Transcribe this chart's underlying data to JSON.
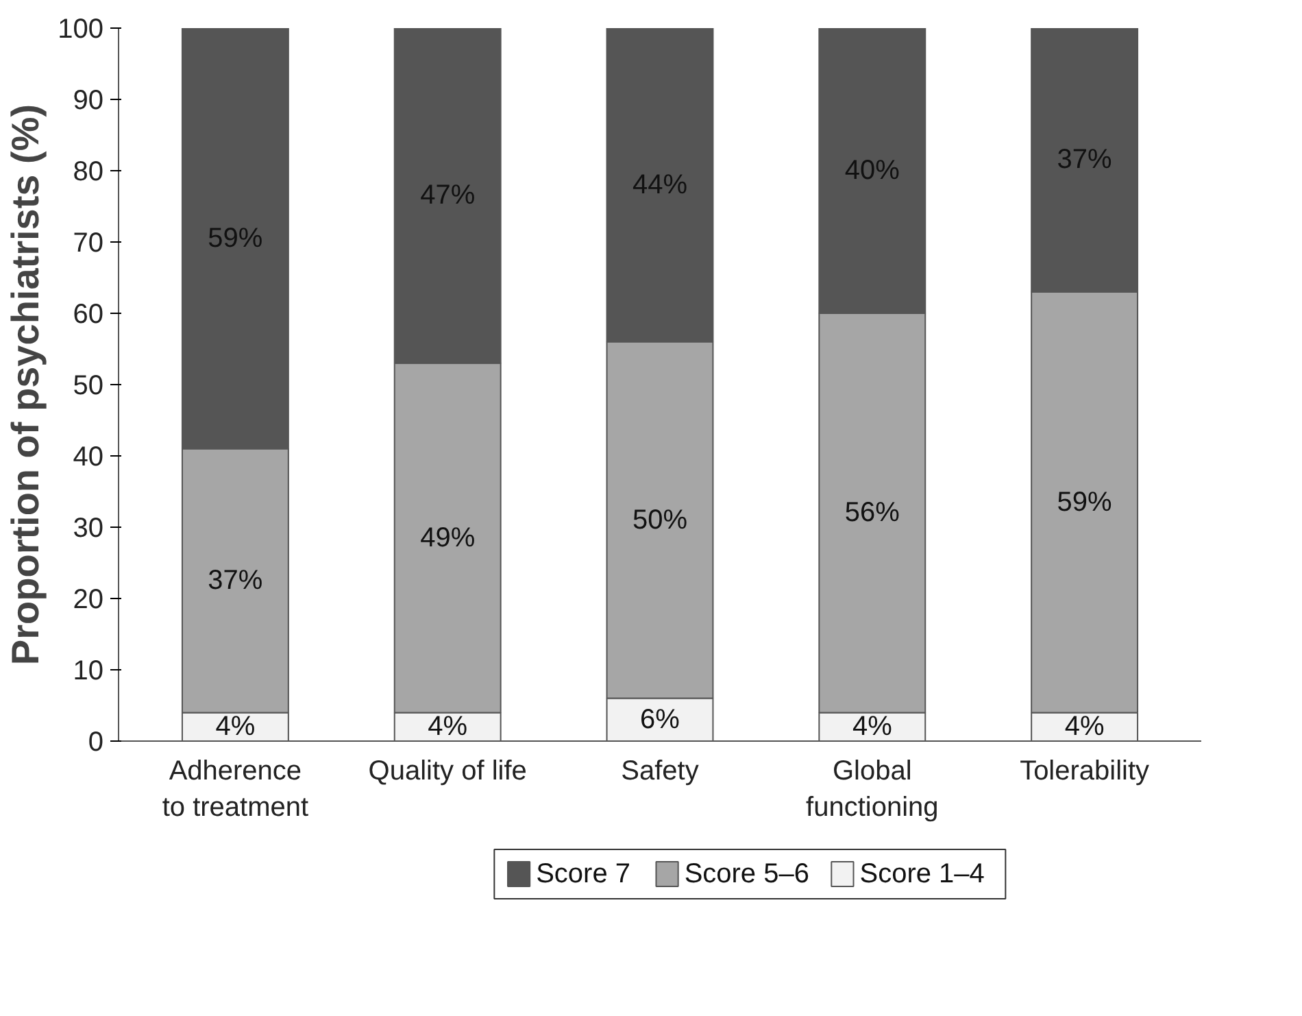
{
  "chart_data": {
    "type": "bar",
    "stacked": true,
    "ylabel": "Proportion of psychiatrists (%)",
    "categories": [
      "Adherence\nto treatment",
      "Quality of life",
      "Safety",
      "Global\nfunctioning",
      "Tolerability"
    ],
    "series": [
      {
        "name": "Score 1–4",
        "color": "#f2f2f2",
        "values": [
          4,
          4,
          6,
          4,
          4
        ],
        "value_labels": [
          "4%",
          "4%",
          "6%",
          "4%",
          "4%"
        ]
      },
      {
        "name": "Score 5–6",
        "color": "#a6a6a6",
        "values": [
          37,
          49,
          50,
          56,
          59
        ],
        "value_labels": [
          "37%",
          "49%",
          "50%",
          "56%",
          "59%"
        ]
      },
      {
        "name": "Score 7",
        "color": "#555555",
        "values": [
          59,
          47,
          44,
          40,
          37
        ],
        "value_labels": [
          "59%",
          "47%",
          "44%",
          "40%",
          "37%"
        ]
      }
    ],
    "ylim": [
      0,
      100
    ],
    "yticks": [
      0,
      10,
      20,
      30,
      40,
      50,
      60,
      70,
      80,
      90,
      100
    ],
    "grid": false,
    "legend": "bottom"
  }
}
